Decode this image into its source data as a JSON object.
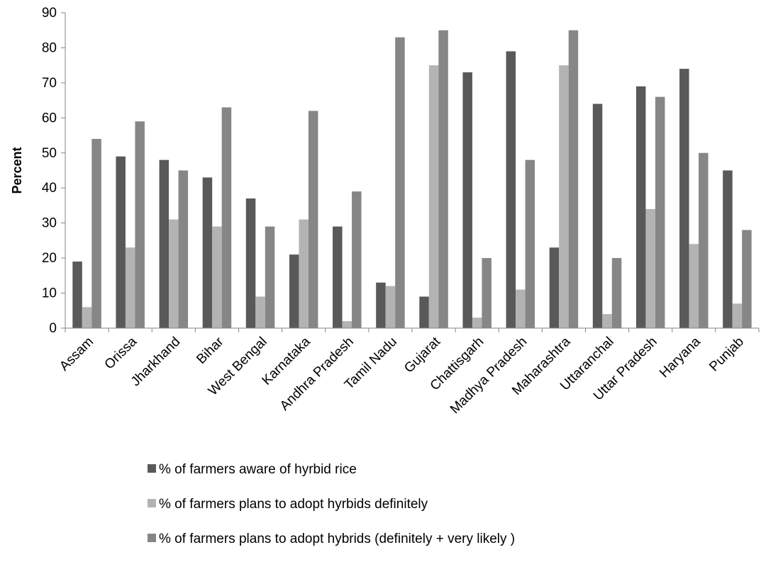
{
  "chart_data": {
    "type": "bar",
    "title": "",
    "xlabel": "",
    "ylabel": "Percent",
    "ylim": [
      0,
      90
    ],
    "yticks": [
      0,
      10,
      20,
      30,
      40,
      50,
      60,
      70,
      80,
      90
    ],
    "grid": false,
    "legend_position": "bottom",
    "categories": [
      "Assam",
      "Orissa",
      "Jharkhand",
      "Bihar",
      "West Bengal",
      "Karnataka",
      "Andhra Pradesh",
      "Tamil Nadu",
      "Gujarat",
      "Chattisgarh",
      "Madhya Pradesh",
      "Maharashtra",
      "Uttaranchal",
      "Uttar Pradesh",
      "Haryana",
      "Punjab"
    ],
    "series": [
      {
        "name": "% of farmers aware of hyrbid rice",
        "color": "#595959",
        "values": [
          19,
          49,
          48,
          43,
          37,
          21,
          29,
          13,
          9,
          73,
          79,
          23,
          64,
          69,
          74,
          45
        ]
      },
      {
        "name": "% of farmers  plans to adopt hyrbids definitely",
        "color": "#b3b3b3",
        "values": [
          6,
          23,
          31,
          29,
          9,
          31,
          2,
          12,
          75,
          3,
          11,
          75,
          4,
          34,
          24,
          7
        ]
      },
      {
        "name": "% of farmers plans to adopt hybrids (definitely + very likely )",
        "color": "#868686",
        "values": [
          54,
          59,
          45,
          63,
          29,
          62,
          39,
          83,
          85,
          20,
          48,
          85,
          20,
          66,
          50,
          28
        ]
      }
    ]
  }
}
